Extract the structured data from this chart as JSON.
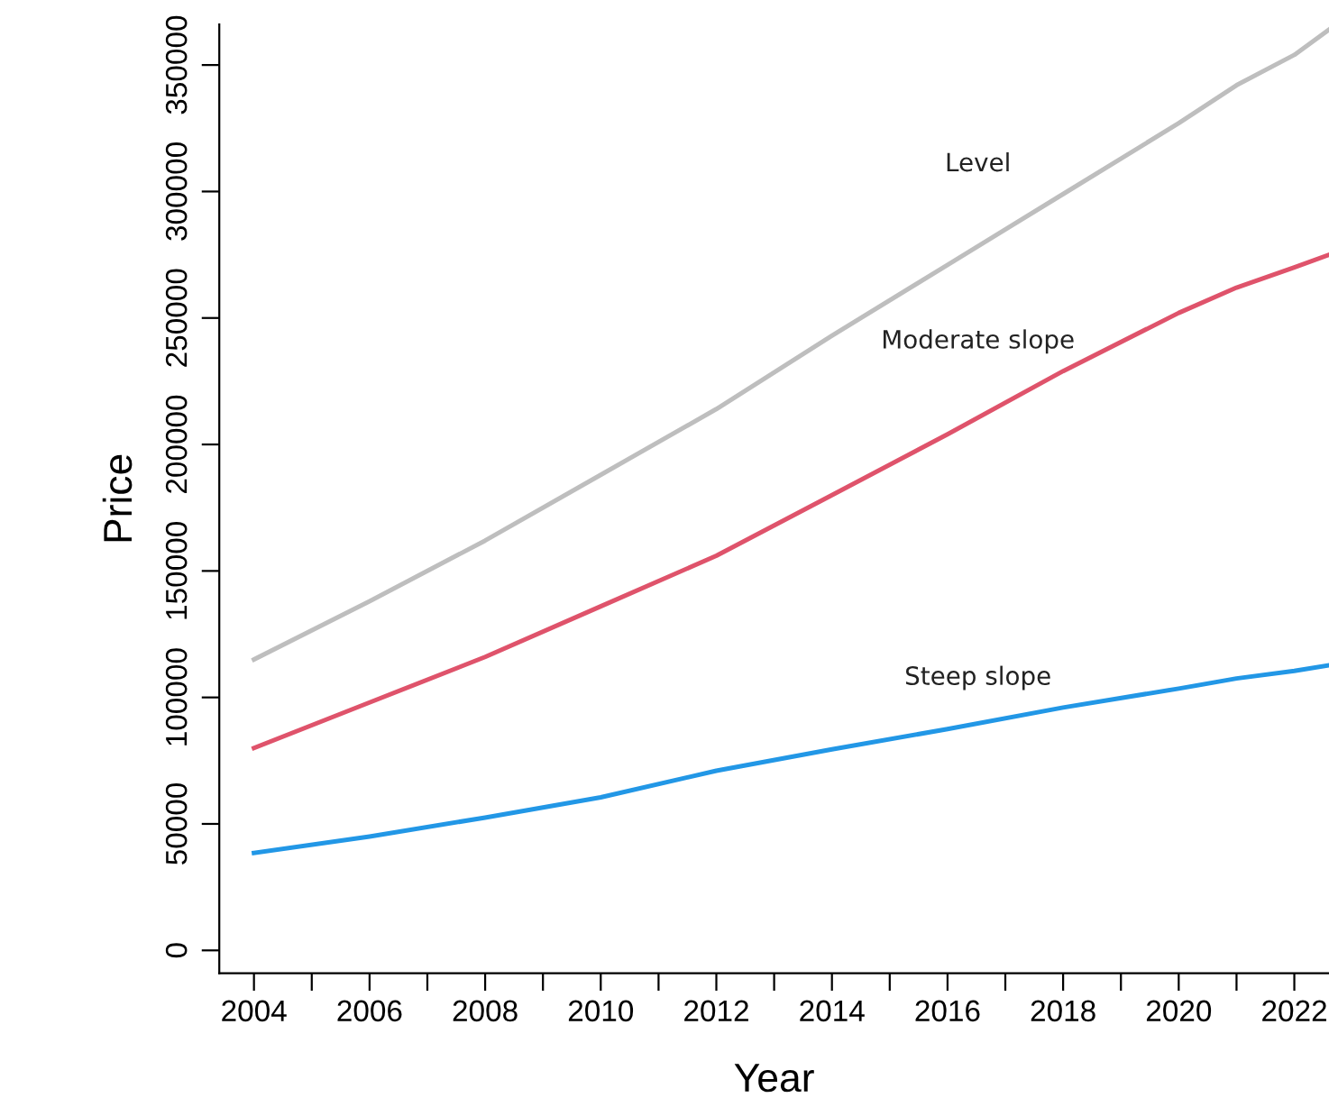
{
  "chart_data": {
    "type": "line",
    "xlabel": "Year",
    "ylabel": "Price",
    "x": [
      2004,
      2006,
      2008,
      2010,
      2012,
      2014,
      2016,
      2018,
      2020,
      2021,
      2022,
      2022.6
    ],
    "series": [
      {
        "name": "Level",
        "color": "#bebebe",
        "values": [
          115000,
          138000,
          162000,
          188000,
          214000,
          243000,
          271000,
          299000,
          327000,
          342000,
          354000,
          364000
        ]
      },
      {
        "name": "Moderate slope",
        "color": "#df536b",
        "values": [
          80000,
          98000,
          116000,
          136000,
          156000,
          180000,
          204000,
          229000,
          252000,
          262000,
          270000,
          275000
        ]
      },
      {
        "name": "Steep slope",
        "color": "#2297e6",
        "values": [
          38500,
          45000,
          52500,
          60500,
          71000,
          79500,
          87500,
          96000,
          103500,
          107500,
          110500,
          112700
        ]
      }
    ],
    "xlim": [
      2003.4,
      2022.6
    ],
    "ylim": [
      -9000,
      366000
    ],
    "xticks": [
      2004,
      {
        "value": 2005,
        "label": null
      },
      2006,
      {
        "value": 2007,
        "label": null
      },
      2008,
      {
        "value": 2009,
        "label": null
      },
      2010,
      {
        "value": 2011,
        "label": null
      },
      2012,
      {
        "value": 2013,
        "label": null
      },
      2014,
      {
        "value": 2015,
        "label": null
      },
      2016,
      {
        "value": 2017,
        "label": null
      },
      2018,
      {
        "value": 2019,
        "label": null
      },
      2020,
      {
        "value": 2021,
        "label": null
      },
      2022
    ],
    "yticks": [
      0,
      50000,
      100000,
      150000,
      200000,
      250000,
      300000,
      350000
    ],
    "grid": false,
    "legend": false,
    "line_style": "solid",
    "marker": "none"
  }
}
